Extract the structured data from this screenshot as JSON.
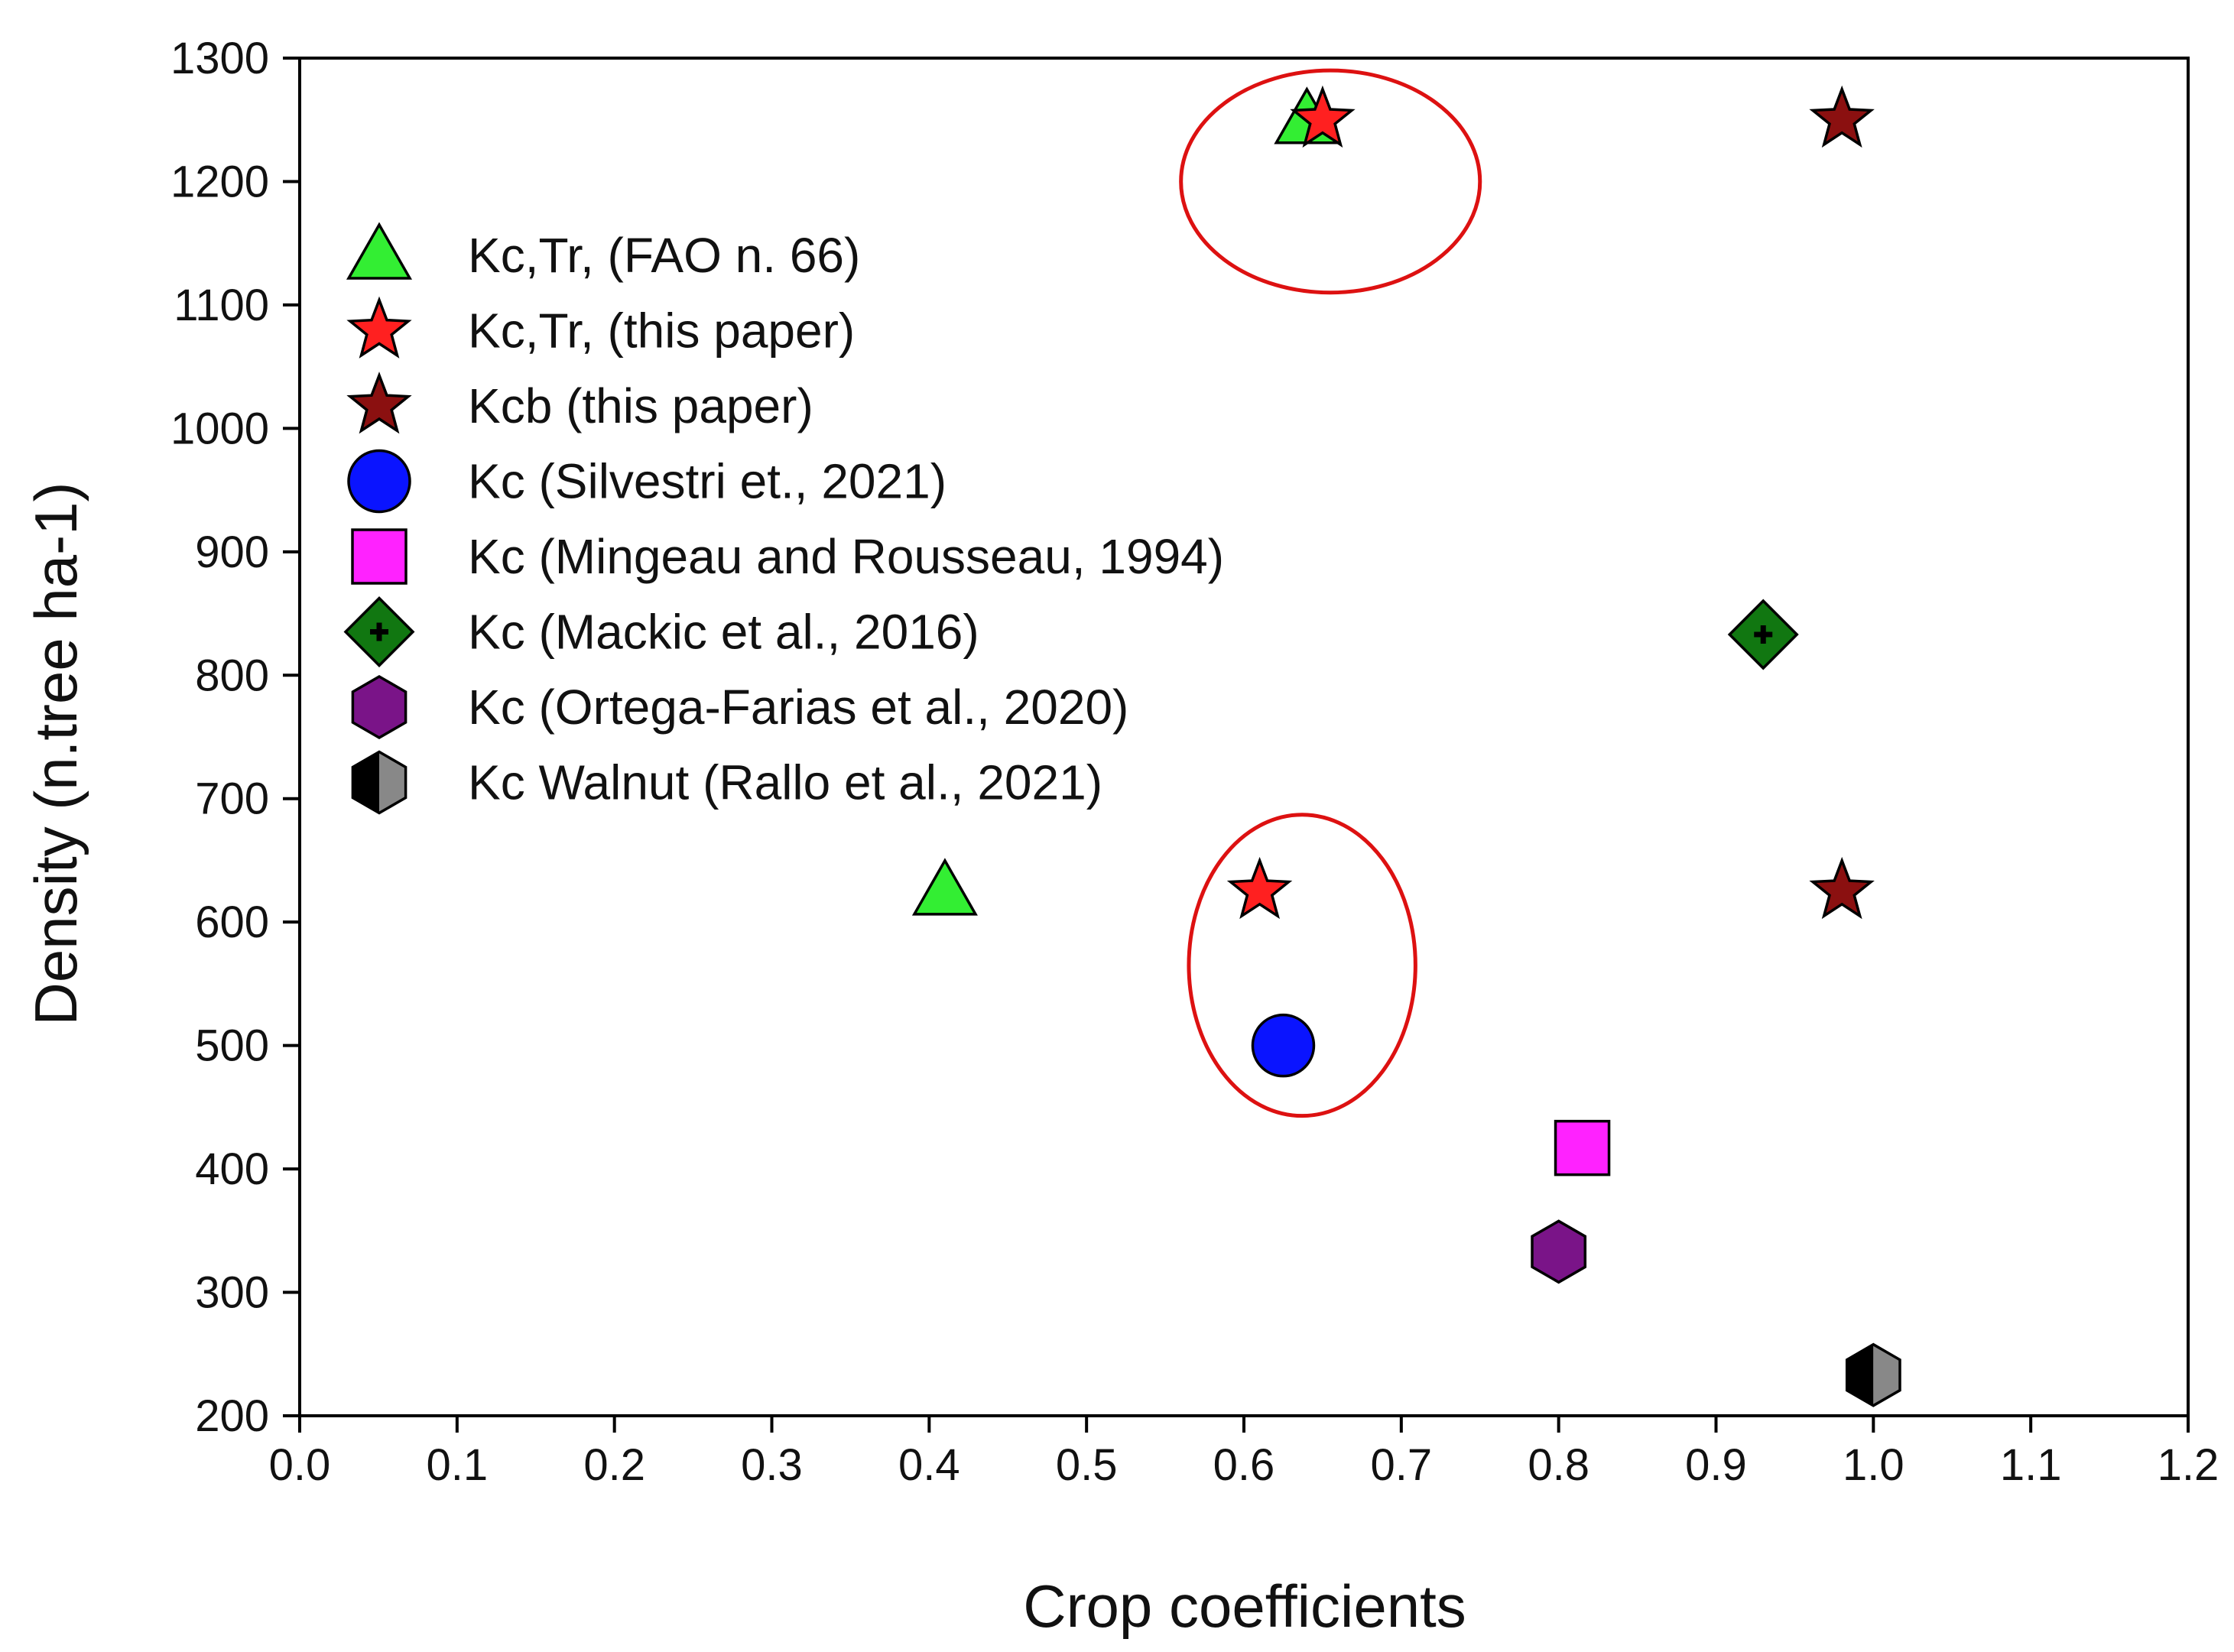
{
  "chart_data": {
    "type": "scatter",
    "title": "",
    "xlabel": "Crop coefficients",
    "ylabel": "Density (n.tree ha-1)",
    "xlim": [
      0.0,
      1.2
    ],
    "ylim": [
      200,
      1300
    ],
    "xticks": [
      "0.0",
      "0.1",
      "0.2",
      "0.3",
      "0.4",
      "0.5",
      "0.6",
      "0.7",
      "0.8",
      "0.9",
      "1.0",
      "1.1",
      "1.2"
    ],
    "yticks": [
      "200",
      "300",
      "400",
      "500",
      "600",
      "700",
      "800",
      "900",
      "1000",
      "1100",
      "1200",
      "1300"
    ],
    "grid": false,
    "legend_position": "upper-left",
    "series": [
      {
        "name": "Kc,Tr, (FAO n. 66)",
        "marker": "triangle",
        "color": "#33ee33",
        "points": [
          [
            0.64,
            1250
          ],
          [
            0.41,
            625
          ]
        ]
      },
      {
        "name": "Kc,Tr, (this paper)",
        "marker": "star",
        "color": "#ff2020",
        "points": [
          [
            0.65,
            1250
          ],
          [
            0.61,
            625
          ]
        ]
      },
      {
        "name": "Kcb (this paper)",
        "marker": "star",
        "color": "#8b1010",
        "points": [
          [
            0.98,
            1250
          ],
          [
            0.98,
            625
          ]
        ]
      },
      {
        "name": "Kc (Silvestri et., 2021)",
        "marker": "circle",
        "color": "#0a14ff",
        "points": [
          [
            0.625,
            500
          ]
        ]
      },
      {
        "name": "Kc (Mingeau and Rousseau, 1994)",
        "marker": "square",
        "color": "#ff22ff",
        "points": [
          [
            0.815,
            417
          ]
        ]
      },
      {
        "name": "Kc (Mackic et al., 2016)",
        "marker": "diamond-plus",
        "color": "#117711",
        "points": [
          [
            0.93,
            833
          ]
        ]
      },
      {
        "name": "Kc (Ortega-Farias et al., 2020)",
        "marker": "hexagon",
        "color": "#7a1488",
        "points": [
          [
            0.8,
            333
          ]
        ]
      },
      {
        "name": "Kc Walnut (Rallo et al., 2021)",
        "marker": "hexagon-half",
        "color": "#888888",
        "points": [
          [
            1.0,
            233
          ]
        ]
      }
    ],
    "annotations": [
      {
        "type": "ellipse",
        "color": "#dd1111",
        "center": [
          0.655,
          1200
        ],
        "radius": [
          0.095,
          90
        ]
      },
      {
        "type": "ellipse",
        "color": "#dd1111",
        "center": [
          0.637,
          565
        ],
        "radius": [
          0.072,
          122
        ]
      }
    ]
  }
}
